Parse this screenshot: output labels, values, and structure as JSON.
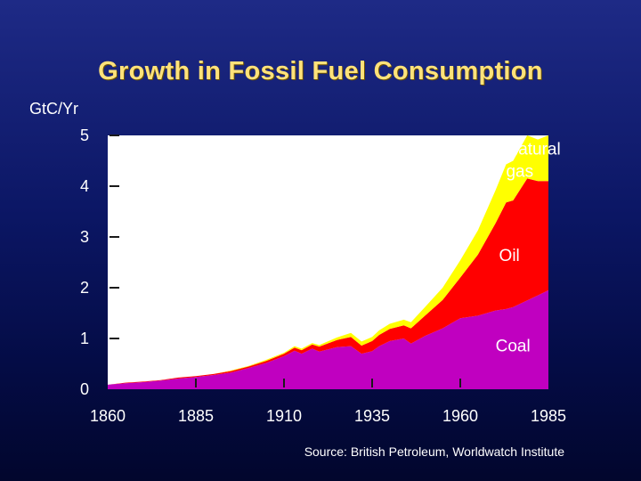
{
  "title": "Growth in Fossil Fuel Consumption",
  "source": "Source: British Petroleum, Worldwatch Institute",
  "colors": {
    "background": "#0b1664",
    "title": "#ffe27a",
    "plot_area": "#ffffff",
    "coal": "#c000c0",
    "oil": "#ff0000",
    "natural_gas": "#ffff00",
    "text": "#ffffff"
  },
  "chart_data": {
    "type": "area",
    "stacked": true,
    "title": "Growth in Fossil Fuel Consumption",
    "ylabel": "GtC/Yr",
    "xlabel": "",
    "xlim": [
      1860,
      1985
    ],
    "ylim": [
      0,
      5
    ],
    "x_ticks": [
      "1860",
      "1885",
      "1910",
      "1935",
      "1960",
      "1985"
    ],
    "y_ticks": [
      "0",
      "1",
      "2",
      "3",
      "4",
      "5"
    ],
    "grid": false,
    "x": [
      1860,
      1865,
      1870,
      1875,
      1880,
      1885,
      1890,
      1895,
      1900,
      1905,
      1910,
      1913,
      1915,
      1918,
      1920,
      1925,
      1929,
      1932,
      1935,
      1937,
      1940,
      1944,
      1946,
      1950,
      1955,
      1960,
      1965,
      1970,
      1973,
      1975,
      1979,
      1982,
      1985
    ],
    "series": [
      {
        "name": "Coal",
        "values": [
          0.09,
          0.12,
          0.14,
          0.17,
          0.21,
          0.24,
          0.28,
          0.33,
          0.42,
          0.52,
          0.65,
          0.76,
          0.7,
          0.8,
          0.74,
          0.83,
          0.85,
          0.7,
          0.75,
          0.85,
          0.95,
          1.0,
          0.9,
          1.05,
          1.2,
          1.4,
          1.45,
          1.55,
          1.58,
          1.62,
          1.75,
          1.85,
          1.95
        ]
      },
      {
        "name": "Oil",
        "values": [
          0.0,
          0.01,
          0.01,
          0.01,
          0.02,
          0.02,
          0.02,
          0.03,
          0.03,
          0.04,
          0.05,
          0.06,
          0.07,
          0.08,
          0.1,
          0.14,
          0.18,
          0.16,
          0.2,
          0.22,
          0.24,
          0.26,
          0.3,
          0.4,
          0.56,
          0.8,
          1.2,
          1.72,
          2.1,
          2.1,
          2.4,
          2.25,
          2.15
        ]
      },
      {
        "name": "Natural gas",
        "values": [
          0.0,
          0.0,
          0.0,
          0.0,
          0.0,
          0.0,
          0.0,
          0.01,
          0.01,
          0.02,
          0.02,
          0.03,
          0.03,
          0.03,
          0.03,
          0.05,
          0.08,
          0.08,
          0.08,
          0.09,
          0.1,
          0.11,
          0.12,
          0.17,
          0.24,
          0.34,
          0.48,
          0.65,
          0.75,
          0.78,
          0.85,
          0.82,
          0.9
        ]
      }
    ],
    "annotations": [
      {
        "text": "Natural",
        "series": "Natural gas"
      },
      {
        "text": "gas",
        "series": "Natural gas"
      },
      {
        "text": "Oil",
        "series": "Oil"
      },
      {
        "text": "Coal",
        "series": "Coal"
      }
    ]
  }
}
